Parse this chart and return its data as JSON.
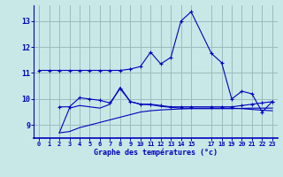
{
  "title": "Graphe des températures (°c)",
  "background_color": "#c8e8e8",
  "grid_color": "#9bbcbc",
  "line_color": "#0000bb",
  "xlim": [
    -0.5,
    23.5
  ],
  "ylim": [
    8.5,
    13.6
  ],
  "xticks": [
    0,
    1,
    2,
    3,
    4,
    5,
    6,
    7,
    8,
    9,
    10,
    11,
    12,
    13,
    14,
    15,
    17,
    18,
    19,
    20,
    21,
    22,
    23
  ],
  "yticks": [
    9,
    10,
    11,
    12,
    13
  ],
  "series": [
    {
      "x": [
        0,
        1,
        2,
        3,
        4,
        5,
        6,
        7,
        8,
        9,
        10,
        11,
        12,
        13,
        14,
        15,
        17,
        18,
        19,
        20,
        21,
        22,
        23
      ],
      "y": [
        11.1,
        11.1,
        11.1,
        11.1,
        11.1,
        11.1,
        11.1,
        11.1,
        11.1,
        11.15,
        11.25,
        11.8,
        11.35,
        11.6,
        13.0,
        13.35,
        11.75,
        11.4,
        10.0,
        10.3,
        10.2,
        9.5,
        9.9
      ],
      "marker": true
    },
    {
      "x": [
        2,
        3,
        4,
        5,
        6,
        7,
        8,
        9,
        10,
        11,
        12,
        13,
        14,
        15,
        17,
        18,
        19,
        20,
        21,
        22,
        23
      ],
      "y": [
        9.7,
        9.7,
        10.05,
        10.0,
        9.95,
        9.85,
        10.4,
        9.9,
        9.8,
        9.8,
        9.75,
        9.7,
        9.7,
        9.7,
        9.7,
        9.7,
        9.7,
        9.75,
        9.8,
        9.85,
        9.9
      ],
      "marker": true
    },
    {
      "x": [
        2,
        3,
        4,
        5,
        6,
        7,
        8,
        9,
        10,
        11,
        12,
        13,
        14,
        15,
        17,
        18,
        19,
        20,
        21,
        22,
        23
      ],
      "y": [
        8.7,
        8.75,
        8.9,
        9.0,
        9.1,
        9.2,
        9.3,
        9.4,
        9.5,
        9.55,
        9.58,
        9.6,
        9.62,
        9.63,
        9.63,
        9.63,
        9.63,
        9.64,
        9.65,
        9.65,
        9.65
      ],
      "marker": false
    },
    {
      "x": [
        2,
        3,
        4,
        5,
        6,
        7,
        8,
        9,
        10,
        11,
        12,
        13,
        14,
        15,
        17,
        18,
        19,
        20,
        21,
        22,
        23
      ],
      "y": [
        8.7,
        9.65,
        9.75,
        9.7,
        9.65,
        9.8,
        10.45,
        9.9,
        9.8,
        9.78,
        9.72,
        9.68,
        9.65,
        9.65,
        9.65,
        9.65,
        9.65,
        9.63,
        9.6,
        9.57,
        9.55
      ],
      "marker": false
    }
  ]
}
